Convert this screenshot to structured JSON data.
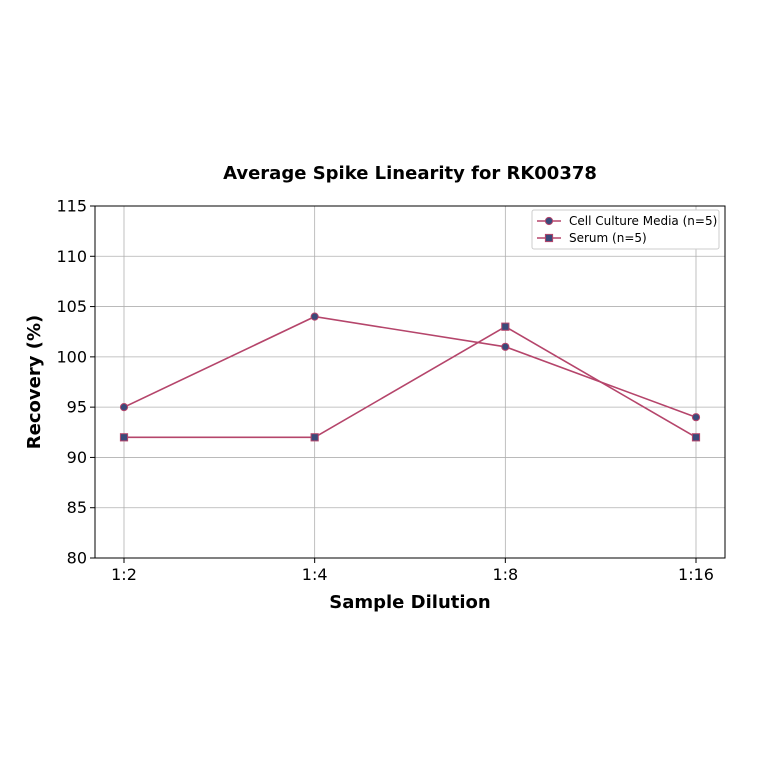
{
  "chart_data": {
    "type": "line",
    "title": "Average Spike Linearity for RK00378",
    "xlabel": "Sample Dilution",
    "ylabel": "Recovery (%)",
    "categories": [
      "1:2",
      "1:4",
      "1:8",
      "1:16"
    ],
    "ylim": [
      80,
      115
    ],
    "yticks": [
      80,
      85,
      90,
      95,
      100,
      105,
      110,
      115
    ],
    "grid": true,
    "legend_position": "top-right",
    "series": [
      {
        "name": "Cell Culture Media (n=5)",
        "marker": "circle",
        "line_color": "#b5456b",
        "marker_color": "#3a4a7a",
        "values": [
          95,
          104,
          101,
          94
        ]
      },
      {
        "name": "Serum (n=5)",
        "marker": "square",
        "line_color": "#b5456b",
        "marker_color": "#3a4a7a",
        "values": [
          92,
          92,
          103,
          92
        ]
      }
    ]
  }
}
